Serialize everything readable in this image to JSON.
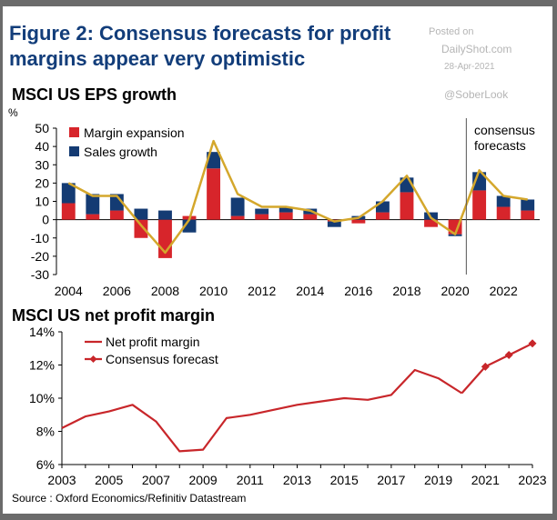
{
  "figure_title_line1": "Figure 2: Consensus  forecasts  for profit",
  "figure_title_line2": "margins appear very optimistic",
  "watermark": {
    "posted_on": "Posted on",
    "site": "DailyShot.com",
    "date": "28-Apr-2021",
    "handle": "@SoberLook"
  },
  "source": "Source : Oxford Economics/Refinitiv Datastream",
  "colors": {
    "margin_expansion": "#d7252b",
    "sales_growth": "#143b73",
    "eps_line": "#d4a72c",
    "net_margin": "#c8262a",
    "title": "#123d7a"
  },
  "chart_data": [
    {
      "type": "bar",
      "title": "MSCI US EPS growth",
      "ylabel": "%",
      "ylim": [
        -30,
        50
      ],
      "yticks": [
        -30,
        -20,
        -10,
        0,
        10,
        20,
        30,
        40,
        50
      ],
      "years": [
        2004,
        2005,
        2006,
        2007,
        2008,
        2009,
        2010,
        2011,
        2012,
        2013,
        2014,
        2015,
        2016,
        2017,
        2018,
        2019,
        2020,
        2021,
        2022,
        2023
      ],
      "xtick_labels": [
        "2004",
        "2006",
        "2008",
        "2010",
        "2012",
        "2014",
        "2016",
        "2018",
        "2020",
        "2022"
      ],
      "stacked": true,
      "series": [
        {
          "name": "Margin expansion",
          "values": [
            9,
            3,
            5,
            -10,
            -21,
            2,
            28,
            2,
            3,
            4,
            3,
            -1,
            -2,
            4,
            15,
            -4,
            -8,
            16,
            7,
            5
          ]
        },
        {
          "name": "Sales growth",
          "values": [
            11,
            11,
            9,
            6,
            5,
            -7,
            9,
            10,
            3,
            3,
            3,
            -3,
            2,
            6,
            8,
            4,
            -1,
            10,
            6,
            6
          ]
        }
      ],
      "eps_growth_line": [
        20,
        13,
        13,
        -3,
        -18,
        0,
        43,
        14,
        7,
        7,
        5,
        -1,
        1,
        10,
        24,
        1,
        -8,
        27,
        13,
        11
      ],
      "forecast_start_year": 2021,
      "annotation": "consensus\nforecasts",
      "legend": "top-left"
    },
    {
      "type": "line",
      "title": "MSCI US net profit margin",
      "ylim": [
        6,
        14
      ],
      "yticks": [
        6,
        8,
        10,
        12,
        14
      ],
      "ytick_labels": [
        "6%",
        "8%",
        "10%",
        "12%",
        "14%"
      ],
      "xlim": [
        2003,
        2023
      ],
      "xtick_labels": [
        "2003",
        "2005",
        "2007",
        "2009",
        "2011",
        "2013",
        "2015",
        "2017",
        "2019",
        "2021",
        "2023"
      ],
      "series": [
        {
          "name": "Net profit margin",
          "x": [
            2003,
            2004,
            2005,
            2006,
            2007,
            2008,
            2009,
            2010,
            2011,
            2012,
            2013,
            2014,
            2015,
            2016,
            2017,
            2018,
            2019,
            2020
          ],
          "y": [
            8.2,
            8.9,
            9.2,
            9.6,
            8.6,
            6.8,
            6.9,
            8.8,
            9.0,
            9.3,
            9.6,
            9.8,
            10.0,
            9.9,
            10.2,
            11.7,
            11.2,
            10.3
          ]
        },
        {
          "name": "Consensus forecast",
          "x": [
            2020,
            2021,
            2022,
            2023
          ],
          "y": [
            10.3,
            11.9,
            12.6,
            13.3
          ]
        }
      ],
      "legend": "top-left"
    }
  ]
}
